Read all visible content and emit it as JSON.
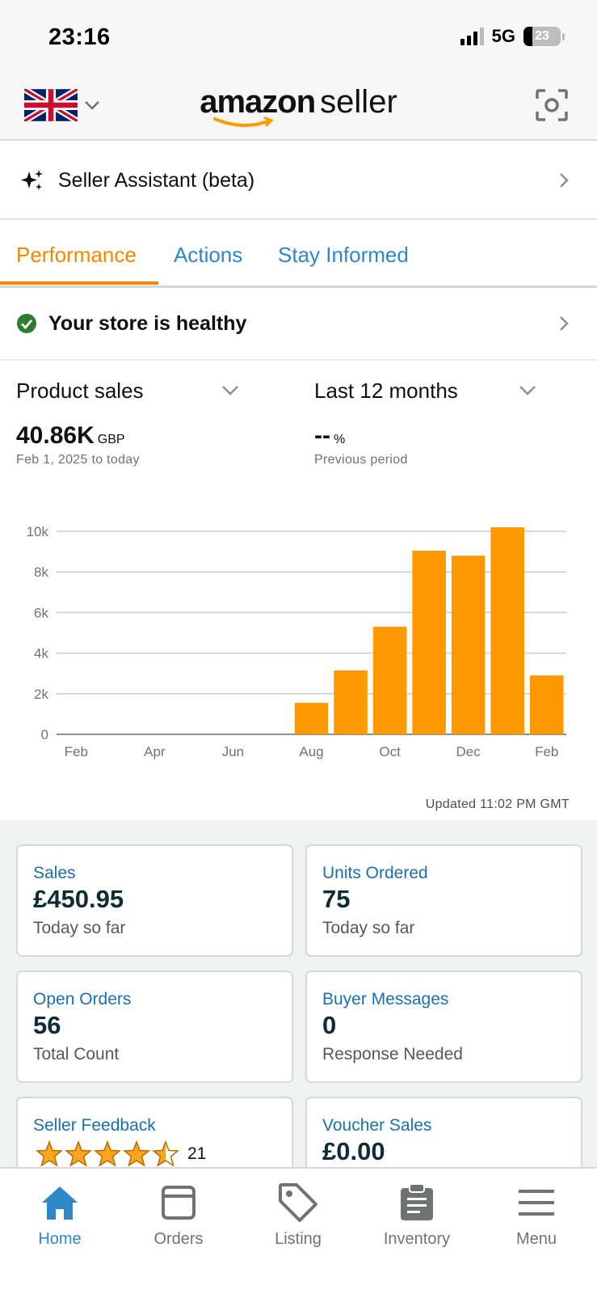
{
  "status_bar": {
    "time": "23:16",
    "network": "5G",
    "battery": "23"
  },
  "header": {
    "logo_word": "amazon",
    "logo_suffix": "seller"
  },
  "assistant": {
    "label": "Seller Assistant (beta)"
  },
  "tabs": [
    {
      "label": "Performance",
      "active": true
    },
    {
      "label": "Actions",
      "active": false
    },
    {
      "label": "Stay Informed",
      "active": false
    }
  ],
  "health": {
    "label": "Your store is healthy"
  },
  "metric": {
    "selector": "Product sales",
    "value": "40.86K",
    "unit": "GBP",
    "range": "Feb 1, 2025 to today"
  },
  "period": {
    "selector": "Last 12 months",
    "value": "--",
    "unit": "%",
    "caption": "Previous period"
  },
  "chart_data": {
    "type": "bar",
    "categories": [
      "Feb",
      "Mar",
      "Apr",
      "May",
      "Jun",
      "Jul",
      "Aug",
      "Sep",
      "Oct",
      "Nov",
      "Dec",
      "Jan",
      "Feb"
    ],
    "x_tick_labels": [
      "Feb",
      "Apr",
      "Jun",
      "Aug",
      "Oct",
      "Dec",
      "Feb"
    ],
    "values": [
      0,
      0,
      0,
      0,
      0,
      0,
      1550,
      3150,
      5300,
      9050,
      8800,
      10200,
      2900
    ],
    "y_tick_labels": [
      "0",
      "2k",
      "4k",
      "6k",
      "8k",
      "10k"
    ],
    "y_ticks": [
      0,
      2000,
      4000,
      6000,
      8000,
      10000
    ],
    "ylim": [
      0,
      10200
    ],
    "grid": true,
    "bar_color": "#ff9900"
  },
  "updated": "Updated 11:02 PM GMT",
  "cards": [
    {
      "title": "Sales",
      "value": "£450.95",
      "sub": "Today so far"
    },
    {
      "title": "Units Ordered",
      "value": "75",
      "sub": "Today so far"
    },
    {
      "title": "Open Orders",
      "value": "56",
      "sub": "Total Count"
    },
    {
      "title": "Buyer Messages",
      "value": "0",
      "sub": "Response Needed"
    },
    {
      "title": "Seller Feedback",
      "rating": 4.5,
      "count": "21"
    },
    {
      "title": "Voucher Sales",
      "value": "£0.00"
    }
  ],
  "nav": [
    {
      "label": "Home",
      "icon": "home-icon",
      "active": true
    },
    {
      "label": "Orders",
      "icon": "orders-box-icon"
    },
    {
      "label": "Listing",
      "icon": "tag-icon"
    },
    {
      "label": "Inventory",
      "icon": "clipboard-icon"
    },
    {
      "label": "Menu",
      "icon": "hamburger-menu-icon"
    }
  ],
  "colors": {
    "accent": "#f08804",
    "link": "#2f86c9",
    "bar": "#ff9900",
    "healthy": "#2e7d32"
  }
}
